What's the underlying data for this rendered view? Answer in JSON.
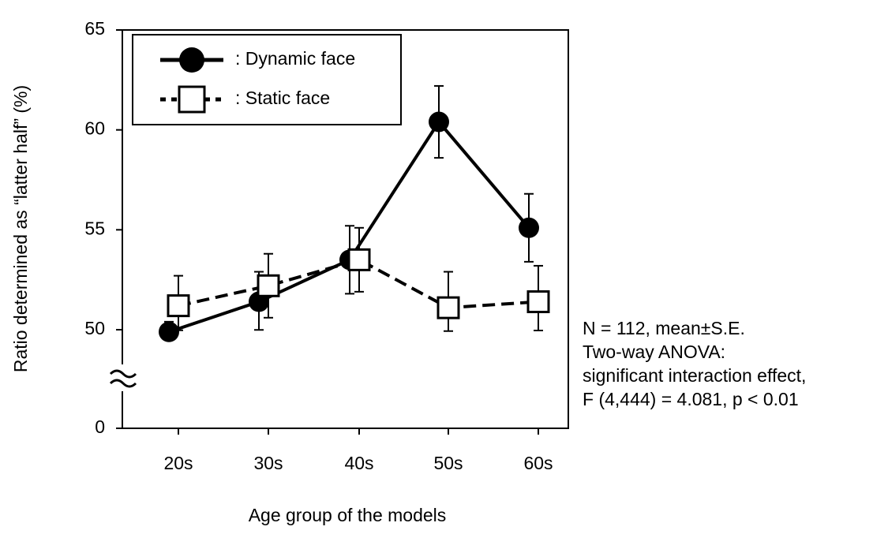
{
  "chart_data": {
    "type": "line",
    "y_label": "Ratio determined as “latter half” (%)",
    "x_label": "Age group of the models",
    "categories": [
      "20s",
      "30s",
      "40s",
      "50s",
      "60s"
    ],
    "series": [
      {
        "name": ": Dynamic face",
        "color": "#000000",
        "linestyle": "solid",
        "marker": "circle",
        "values": [
          48.9,
          51.4,
          53.5,
          60.4,
          55.1
        ],
        "errors": [
          1.5,
          1.5,
          1.7,
          1.8,
          1.7
        ]
      },
      {
        "name": ": Static face",
        "color": "#000000",
        "linestyle": "dashed",
        "marker": "square",
        "values": [
          51.2,
          52.2,
          53.5,
          51.1,
          51.4
        ],
        "errors": [
          1.5,
          1.6,
          1.6,
          1.8,
          1.8
        ]
      }
    ],
    "ylim": [
      0,
      65
    ],
    "ybreak": [
      0,
      50
    ],
    "yticks": [
      0,
      50,
      55,
      60,
      65
    ],
    "legend": "upper left",
    "annotation": [
      "N = 112, mean±S.E.",
      "Two-way ANOVA:",
      "significant interaction effect,",
      "F (4,444) = 4.081, p < 0.01"
    ]
  }
}
